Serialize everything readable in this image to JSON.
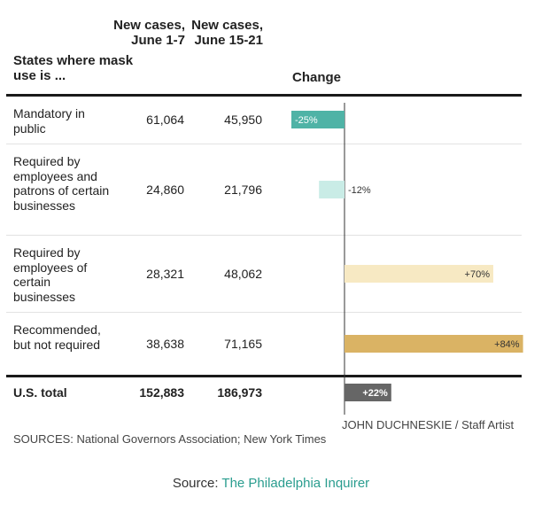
{
  "header": {
    "col_state": "States where mask use is ...",
    "col_june1": "New cases, June 1-7",
    "col_june15": "New cases, June 15-21",
    "col_change": "Change"
  },
  "rows": [
    {
      "label": "Mandatory in public",
      "june1": "61,064",
      "june15": "45,950",
      "change_label": "-25%"
    },
    {
      "label": "Required by employees and patrons of certain businesses",
      "june1": "24,860",
      "june15": "21,796",
      "change_label": "-12%"
    },
    {
      "label": "Required by employees of certain businesses",
      "june1": "28,321",
      "june15": "48,062",
      "change_label": "+70%"
    },
    {
      "label": "Recommended, but not required",
      "june1": "38,638",
      "june15": "71,165",
      "change_label": "+84%"
    }
  ],
  "total": {
    "label": "U.S. total",
    "june1": "152,883",
    "june15": "186,973",
    "change_label": "+22%"
  },
  "credit": "JOHN DUCHNESKIE / Staff Artist",
  "sources": "SOURCES: National Governors Association; New York Times",
  "footer": {
    "prefix": "Source: ",
    "link_text": "The Philadelphia Inquirer"
  },
  "chart_data": {
    "type": "bar",
    "categories": [
      "Mandatory in public",
      "Required by employees and patrons of certain businesses",
      "Required by employees of certain businesses",
      "Recommended, but not required",
      "U.S. total"
    ],
    "values": [
      -25,
      -12,
      70,
      84,
      22
    ],
    "title": "",
    "xlabel": "Change",
    "ylabel": "",
    "colors": [
      "#4fb3a6",
      "#c9ece6",
      "#f7e9c3",
      "#dab364",
      "#666666"
    ]
  }
}
